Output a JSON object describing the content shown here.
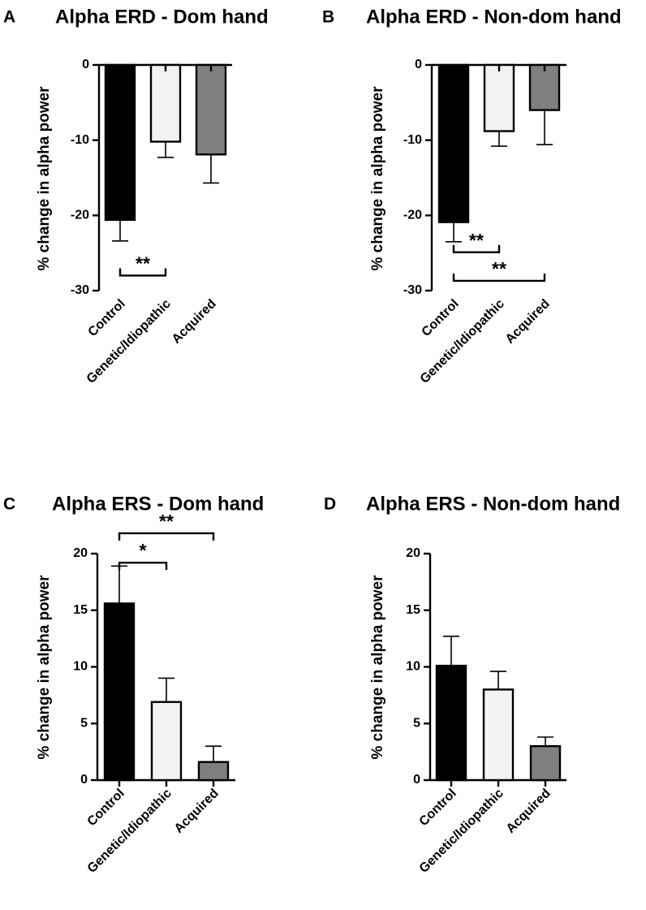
{
  "colors": {
    "background": "#ffffff",
    "axis": "#000000",
    "bar_outline": "#000000",
    "control": "#000000",
    "genetic": "#f2f2f2",
    "acquired": "#7f7f7f"
  },
  "chart_data": [
    {
      "type": "bar",
      "panel_letter": "A",
      "title": "Alpha ERD - Dom hand",
      "ylabel": "% change in alpha power",
      "xlabel": "",
      "categories": [
        "Control",
        "Genetic/Idiopathic",
        "Acquired"
      ],
      "values": [
        -20.6,
        -10.2,
        -11.9
      ],
      "errors": [
        2.8,
        2.1,
        3.8
      ],
      "bar_colors": [
        "#000000",
        "#f2f2f2",
        "#7f7f7f"
      ],
      "ylim": [
        -30,
        0
      ],
      "yticks": [
        0,
        -10,
        -20,
        -30
      ],
      "ytick_labels": [
        "0",
        "-10",
        "-20",
        "-30"
      ],
      "grid": false,
      "significance": [
        {
          "from": 0,
          "to": 1,
          "label": "**",
          "level": -28.0
        }
      ]
    },
    {
      "type": "bar",
      "panel_letter": "B",
      "title": "Alpha ERD - Non-dom hand",
      "ylabel": "% change in alpha power",
      "xlabel": "",
      "categories": [
        "Control",
        "Genetic/Idiopathic",
        "Acquired"
      ],
      "values": [
        -20.9,
        -8.8,
        -6.0
      ],
      "errors": [
        2.6,
        2.0,
        4.6
      ],
      "bar_colors": [
        "#000000",
        "#f2f2f2",
        "#7f7f7f"
      ],
      "ylim": [
        -30,
        0
      ],
      "yticks": [
        0,
        -10,
        -20,
        -30
      ],
      "ytick_labels": [
        "0",
        "-10",
        "-20",
        "-30"
      ],
      "grid": false,
      "significance": [
        {
          "from": 0,
          "to": 1,
          "label": "**",
          "level": -24.9
        },
        {
          "from": 0,
          "to": 2,
          "label": "**",
          "level": -28.7
        }
      ]
    },
    {
      "type": "bar",
      "panel_letter": "C",
      "title": "Alpha ERS - Dom hand",
      "ylabel": "% change in alpha power",
      "xlabel": "",
      "categories": [
        "Control",
        "Genetic/Idiopathic",
        "Acquired"
      ],
      "values": [
        15.6,
        6.9,
        1.6
      ],
      "errors": [
        3.3,
        2.1,
        1.4
      ],
      "bar_colors": [
        "#000000",
        "#f2f2f2",
        "#7f7f7f"
      ],
      "ylim": [
        0,
        20
      ],
      "yticks": [
        0,
        5,
        10,
        15,
        20
      ],
      "ytick_labels": [
        "0",
        "5",
        "10",
        "15",
        "20"
      ],
      "grid": false,
      "significance": [
        {
          "from": 0,
          "to": 1,
          "label": "*",
          "level": 19.2
        },
        {
          "from": 0,
          "to": 2,
          "label": "**",
          "level": 21.8
        }
      ]
    },
    {
      "type": "bar",
      "panel_letter": "D",
      "title": "Alpha ERS - Non-dom hand",
      "ylabel": "% change in alpha power",
      "xlabel": "",
      "categories": [
        "Control",
        "Genetic/Idiopathic",
        "Acquired"
      ],
      "values": [
        10.1,
        8.0,
        3.0
      ],
      "errors": [
        2.6,
        1.6,
        0.8
      ],
      "bar_colors": [
        "#000000",
        "#f2f2f2",
        "#7f7f7f"
      ],
      "ylim": [
        0,
        20
      ],
      "yticks": [
        0,
        5,
        10,
        15,
        20
      ],
      "ytick_labels": [
        "0",
        "5",
        "10",
        "15",
        "20"
      ],
      "grid": false,
      "significance": []
    }
  ]
}
